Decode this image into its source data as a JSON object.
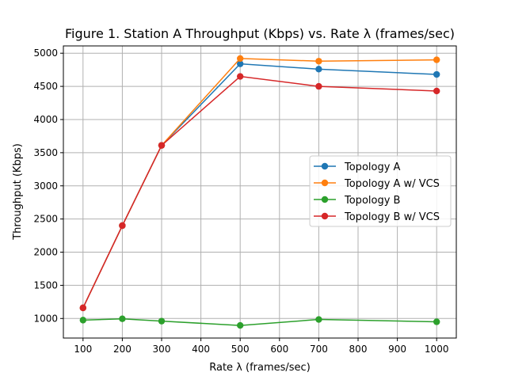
{
  "chart_data": {
    "type": "line",
    "title": "Figure 1. Station A Throughput (Kbps) vs. Rate λ (frames/sec)",
    "xlabel": "Rate λ (frames/sec)",
    "ylabel": "Throughput (Kbps)",
    "xlim": [
      50,
      1050
    ],
    "ylim": [
      705,
      5110
    ],
    "xticks": [
      100,
      200,
      300,
      400,
      500,
      600,
      700,
      800,
      900,
      1000
    ],
    "yticks": [
      1000,
      1500,
      2000,
      2500,
      3000,
      3500,
      4000,
      4500,
      5000
    ],
    "grid": true,
    "legend_position": "center-right",
    "x": [
      100,
      200,
      300,
      500,
      700,
      1000
    ],
    "series": [
      {
        "name": "Topology A",
        "color": "#1f77b4",
        "values": [
          1160,
          2400,
          3610,
          4840,
          4760,
          4680
        ]
      },
      {
        "name": "Topology A w/ VCS",
        "color": "#ff7f0e",
        "values": [
          1160,
          2400,
          3610,
          4920,
          4880,
          4900
        ]
      },
      {
        "name": "Topology B",
        "color": "#2ca02c",
        "values": [
          975,
          995,
          960,
          895,
          985,
          950
        ]
      },
      {
        "name": "Topology B w/ VCS",
        "color": "#d62728",
        "values": [
          1160,
          2400,
          3610,
          4650,
          4500,
          4430
        ]
      }
    ]
  }
}
